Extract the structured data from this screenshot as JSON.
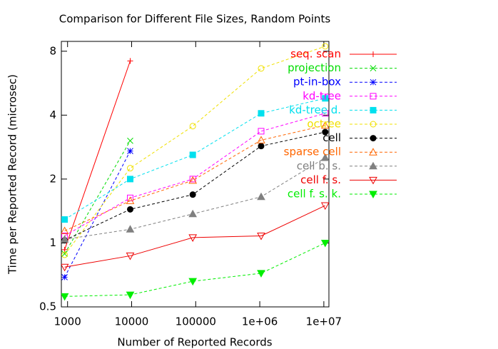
{
  "chart_data": {
    "type": "line",
    "title": "Comparison for Different File Sizes, Random Points",
    "x_label": "Number of Reported Records",
    "y_label": "Time per Reported Record (microsec)",
    "x": [
      900,
      9500,
      90000,
      1050000,
      10500000
    ],
    "xlim": [
      800,
      12000000
    ],
    "ylim": [
      0.5,
      8.9
    ],
    "xscale": "log",
    "yscale": "log",
    "xticks": [
      1000,
      10000,
      100000,
      {
        "value": 1000000,
        "label": "1e+06"
      },
      {
        "value": 10000000,
        "label": "1e+07"
      }
    ],
    "yticks": [
      0.5,
      1,
      2,
      4,
      8
    ],
    "series": [
      {
        "name": "seq. scan",
        "color": "#ff0000",
        "marker": "plus",
        "dashed": false,
        "values": [
          0.93,
          7.2,
          null,
          null,
          null
        ]
      },
      {
        "name": "projection",
        "color": "#00dd00",
        "marker": "cross",
        "dashed": true,
        "values": [
          0.89,
          3.03,
          null,
          null,
          null
        ]
      },
      {
        "name": "pt-in-box",
        "color": "#0000ff",
        "marker": "star",
        "dashed": true,
        "values": [
          0.69,
          2.71,
          null,
          null,
          null
        ]
      },
      {
        "name": "kd-tree",
        "color": "#ff00ff",
        "marker": "square-open",
        "dashed": true,
        "values": [
          1.08,
          1.63,
          2.0,
          3.36,
          4.08
        ]
      },
      {
        "name": "kd-tree d.",
        "color": "#00e0ee",
        "marker": "square",
        "dashed": true,
        "values": [
          1.29,
          2.0,
          2.6,
          4.08,
          4.8
        ]
      },
      {
        "name": "octree",
        "color": "#f0e000",
        "marker": "circle-open",
        "dashed": true,
        "values": [
          0.88,
          2.25,
          3.55,
          6.64,
          8.44
        ]
      },
      {
        "name": "cell",
        "color": "#000000",
        "marker": "circle",
        "dashed": true,
        "values": [
          1.03,
          1.44,
          1.69,
          2.86,
          3.33
        ]
      },
      {
        "name": "sparse cell",
        "color": "#ff6600",
        "marker": "triangle-open",
        "dashed": true,
        "values": [
          1.14,
          1.58,
          1.97,
          3.05,
          3.58
        ]
      },
      {
        "name": "cell b. s.",
        "color": "#808080",
        "marker": "triangle",
        "dashed": true,
        "values": [
          1.04,
          1.16,
          1.37,
          1.65,
          2.52
        ]
      },
      {
        "name": "cell f. s.",
        "color": "#ee0000",
        "marker": "itriangle-open",
        "dashed": false,
        "values": [
          0.77,
          0.87,
          1.06,
          1.08,
          1.5
        ]
      },
      {
        "name": "cell f. s. k.",
        "color": "#00ee00",
        "marker": "itriangle",
        "dashed": true,
        "values": [
          0.56,
          0.57,
          0.66,
          0.72,
          1.0
        ]
      }
    ]
  }
}
